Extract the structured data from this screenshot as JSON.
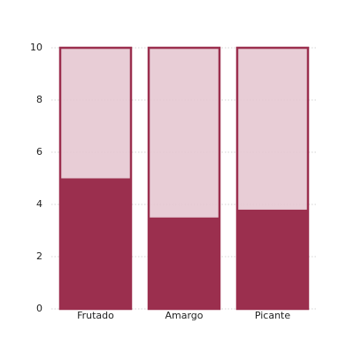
{
  "chart_data": {
    "type": "bar",
    "categories": [
      "Frutado",
      "Amargo",
      "Picante"
    ],
    "values": [
      5,
      3.5,
      3.8
    ],
    "outline_values": [
      10,
      10,
      10
    ],
    "color": "#9b2f4e",
    "outline_fill": "#e6c8d1",
    "ylim": [
      0,
      10
    ],
    "yticks": [
      0,
      2,
      4,
      6,
      8,
      10
    ],
    "grid": true
  }
}
